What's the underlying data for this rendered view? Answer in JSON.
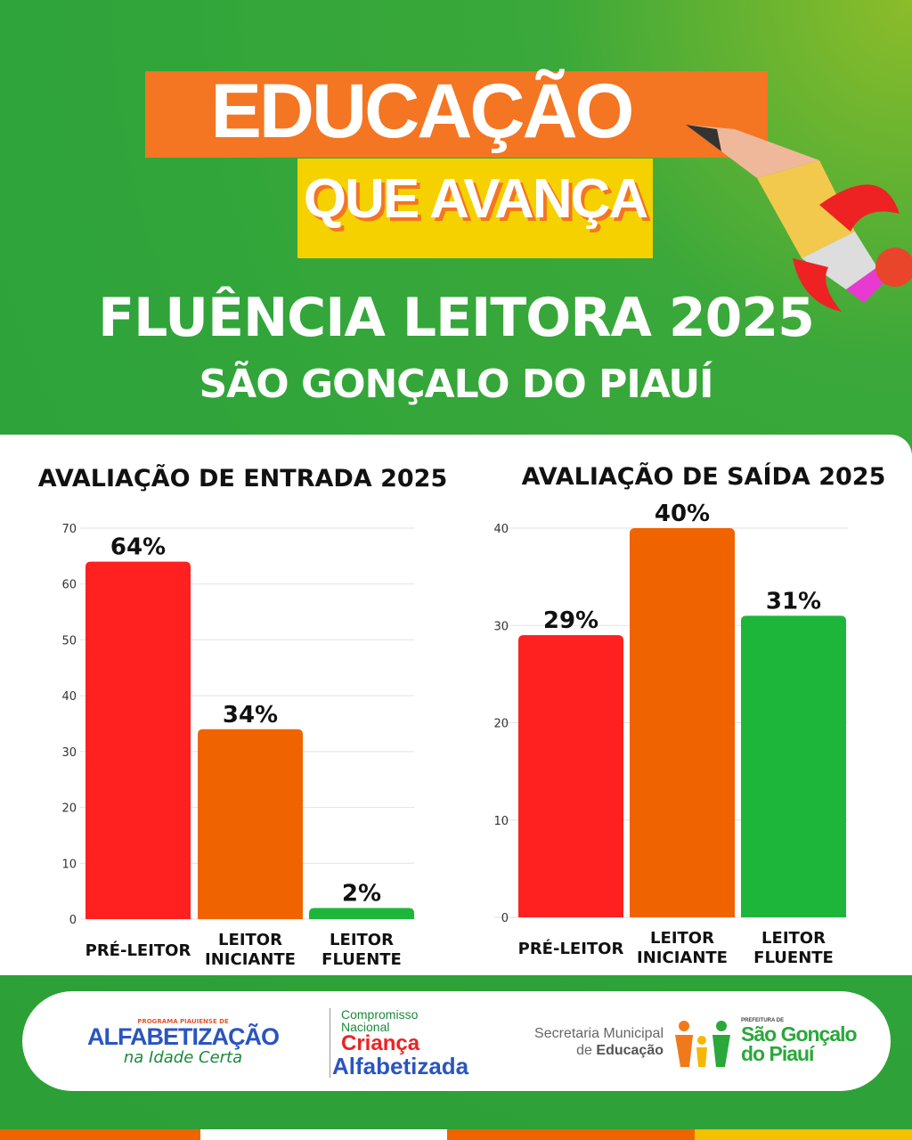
{
  "header": {
    "title": "EDUCAÇÃO",
    "subtitle": "QUE AVANÇA",
    "heading": "FLUÊNCIA LEITORA 2025",
    "location": "SÃO GONÇALO DO PIAUÍ"
  },
  "colors": {
    "pre": "#ff2020",
    "iniciante": "#f06400",
    "fluente": "#1db53a",
    "green_bg": "#2fa43a",
    "orange": "#f47522",
    "yellow": "#f5d100"
  },
  "chart_data": [
    {
      "type": "bar",
      "title": "AVALIAÇÃO DE ENTRADA 2025",
      "categories": [
        [
          "PRÉ-LEITOR"
        ],
        [
          "LEITOR",
          "INICIANTE"
        ],
        [
          "LEITOR",
          "FLUENTE"
        ]
      ],
      "values": [
        64,
        34,
        2
      ],
      "labels": [
        "64%",
        "34%",
        "2%"
      ],
      "ylim": [
        0,
        70
      ],
      "yticks": [
        0,
        10,
        20,
        30,
        40,
        50,
        60,
        70
      ],
      "grid": true
    },
    {
      "type": "bar",
      "title": "AVALIAÇÃO DE SAÍDA 2025",
      "categories": [
        [
          "PRÉ-LEITOR"
        ],
        [
          "LEITOR",
          "INICIANTE"
        ],
        [
          "LEITOR",
          "FLUENTE"
        ]
      ],
      "values": [
        29,
        40,
        31
      ],
      "labels": [
        "29%",
        "40%",
        "31%"
      ],
      "ylim": [
        0,
        40
      ],
      "yticks": [
        0,
        10,
        20,
        30,
        40
      ],
      "grid": true
    }
  ],
  "footer": {
    "logo1": {
      "top": "PROGRAMA PIAUIENSE DE",
      "main": "ALFABETIZAÇÃO",
      "sub": "na Idade Certa"
    },
    "logo2": {
      "l1": "Compromisso",
      "l2": "Nacional",
      "l3": "Criança",
      "l4": "Alfabetizada"
    },
    "logo3": {
      "l1": "Secretaria Municipal",
      "l2a": "de ",
      "l2b": "Educação"
    },
    "logo4": {
      "top": "PREFEITURA DE",
      "l1": "São Gonçalo",
      "l2": "do Piauí"
    }
  }
}
